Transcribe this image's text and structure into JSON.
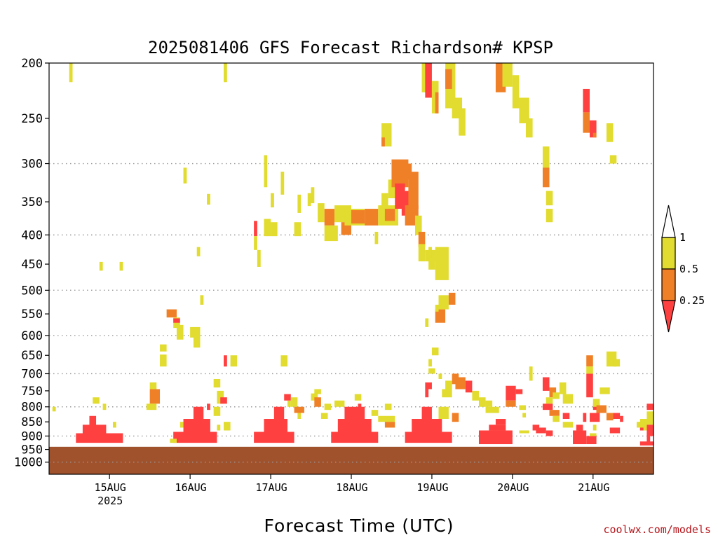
{
  "title": "2025081406 GFS Forecast Richardson# KPSP",
  "credit": "coolwx.com/models",
  "colors": {
    "ri_lt_025": "#ff4040",
    "ri_025_05": "#f08027",
    "ri_05_1": "#e1dc2f",
    "ground": "#a0522d",
    "gridline": "#999999"
  },
  "chart_data": {
    "type": "heatmap",
    "title": "2025081406 GFS Forecast Richardson# KPSP",
    "xlabel": "Forecast Time (UTC)",
    "ylabel": "",
    "x_range_hours_from_init": [
      0,
      180
    ],
    "x_ticks": [
      {
        "label": "15AUG",
        "sub": "2025",
        "hour": 18
      },
      {
        "label": "16AUG",
        "sub": "",
        "hour": 42
      },
      {
        "label": "17AUG",
        "sub": "",
        "hour": 66
      },
      {
        "label": "18AUG",
        "sub": "",
        "hour": 90
      },
      {
        "label": "19AUG",
        "sub": "",
        "hour": 114
      },
      {
        "label": "20AUG",
        "sub": "",
        "hour": 138
      },
      {
        "label": "21AUG",
        "sub": "",
        "hour": 162
      }
    ],
    "y_levels_hpa": [
      "200",
      "250",
      "300",
      "350",
      "400",
      "450",
      "500",
      "550",
      "600",
      "650",
      "700",
      "750",
      "800",
      "850",
      "900",
      "950",
      "1000"
    ],
    "y_range_hpa": [
      1050,
      200
    ],
    "grid_levels_hpa": [
      300,
      400,
      500,
      600,
      700,
      800,
      900,
      1000
    ],
    "ground_top_hpa": 940,
    "colorbar": {
      "labels": [
        "1",
        "0.5",
        "0.25"
      ],
      "bins": [
        {
          "range": "0.5-1",
          "class": 2
        },
        {
          "range": "0.25-0.5",
          "class": 1
        },
        {
          "range": "<0.25",
          "class": 0
        }
      ]
    },
    "class_legend": [
      "<0.25",
      "0.25-0.5",
      "0.5-1"
    ],
    "cells_format": "[hour_start, hour_end, p_top_hPa, p_bottom_hPa, class]",
    "cells": [
      [
        6,
        7,
        200,
        216,
        2
      ],
      [
        52,
        53,
        200,
        216,
        2
      ],
      [
        15,
        16,
        446,
        462,
        2
      ],
      [
        21,
        22,
        446,
        462,
        2
      ],
      [
        40,
        41,
        305,
        325,
        2
      ],
      [
        44,
        45,
        420,
        436,
        2
      ],
      [
        47,
        48,
        339,
        354,
        2
      ],
      [
        35,
        38,
        540,
        558,
        1
      ],
      [
        37,
        39,
        558,
        582,
        2
      ],
      [
        37,
        39,
        560,
        570,
        0
      ],
      [
        38,
        40,
        575,
        610,
        2
      ],
      [
        42,
        45,
        580,
        605,
        2
      ],
      [
        43,
        45,
        595,
        630,
        2
      ],
      [
        45,
        46,
        510,
        530,
        2
      ],
      [
        33,
        35,
        622,
        640,
        2
      ],
      [
        33,
        35,
        648,
        680,
        2
      ],
      [
        30,
        32,
        725,
        745,
        2
      ],
      [
        30,
        33,
        745,
        790,
        1
      ],
      [
        29,
        32,
        790,
        810,
        2
      ],
      [
        13,
        15,
        770,
        790,
        2
      ],
      [
        16,
        17,
        790,
        810,
        2
      ],
      [
        1,
        2,
        800,
        815,
        2
      ],
      [
        12,
        14,
        830,
        880,
        0
      ],
      [
        10,
        17,
        860,
        905,
        0
      ],
      [
        8,
        22,
        890,
        925,
        0
      ],
      [
        19,
        20,
        850,
        870,
        2
      ],
      [
        43,
        46,
        800,
        850,
        0
      ],
      [
        40,
        48,
        840,
        905,
        0
      ],
      [
        37,
        50,
        885,
        925,
        0
      ],
      [
        47,
        48,
        790,
        810,
        0
      ],
      [
        39,
        40,
        850,
        870,
        2
      ],
      [
        36,
        38,
        910,
        925,
        2
      ],
      [
        50,
        51,
        860,
        880,
        2
      ],
      [
        52,
        53,
        650,
        680,
        0
      ],
      [
        54,
        56,
        650,
        680,
        2
      ],
      [
        49,
        51,
        715,
        740,
        2
      ],
      [
        50,
        52,
        750,
        790,
        2
      ],
      [
        49,
        51,
        800,
        830,
        2
      ],
      [
        52,
        54,
        850,
        880,
        2
      ],
      [
        51,
        53,
        770,
        790,
        0
      ],
      [
        64,
        65,
        290,
        330,
        2
      ],
      [
        61,
        62,
        378,
        402,
        0
      ],
      [
        61,
        62,
        402,
        425,
        2
      ],
      [
        62,
        63,
        425,
        455,
        2
      ],
      [
        64,
        66,
        375,
        402,
        2
      ],
      [
        66,
        68,
        380,
        402,
        2
      ],
      [
        66,
        67,
        338,
        358,
        2
      ],
      [
        69,
        70,
        310,
        340,
        2
      ],
      [
        74,
        75,
        340,
        366,
        2
      ],
      [
        77,
        78,
        338,
        356,
        2
      ],
      [
        73,
        75,
        380,
        402,
        2
      ],
      [
        69,
        71,
        650,
        680,
        2
      ],
      [
        67,
        70,
        800,
        850,
        0
      ],
      [
        64,
        71,
        840,
        905,
        0
      ],
      [
        61,
        73,
        885,
        925,
        0
      ],
      [
        71,
        72,
        780,
        800,
        2
      ],
      [
        74,
        75,
        820,
        840,
        2
      ],
      [
        70,
        72,
        760,
        780,
        0
      ],
      [
        72,
        74,
        770,
        800,
        2
      ],
      [
        73,
        76,
        800,
        820,
        1
      ],
      [
        78,
        80,
        758,
        780,
        2
      ],
      [
        79,
        81,
        770,
        800,
        1
      ],
      [
        82,
        84,
        790,
        810,
        2
      ],
      [
        81,
        83,
        820,
        840,
        2
      ],
      [
        86,
        88,
        860,
        880,
        2
      ],
      [
        79,
        81,
        745,
        760,
        2
      ],
      [
        78,
        79,
        330,
        352,
        2
      ],
      [
        80,
        82,
        352,
        380,
        2
      ],
      [
        82,
        85,
        360,
        385,
        1
      ],
      [
        82,
        86,
        385,
        410,
        2
      ],
      [
        85,
        90,
        355,
        380,
        2
      ],
      [
        87,
        90,
        380,
        400,
        1
      ],
      [
        88,
        94,
        360,
        385,
        2
      ],
      [
        90,
        94,
        362,
        382,
        1
      ],
      [
        94,
        98,
        360,
        385,
        1
      ],
      [
        98,
        104,
        355,
        385,
        2
      ],
      [
        100,
        103,
        360,
        378,
        1
      ],
      [
        97,
        98,
        395,
        415,
        2
      ],
      [
        99,
        101,
        338,
        358,
        2
      ],
      [
        101,
        104,
        320,
        345,
        2
      ],
      [
        102,
        107,
        295,
        330,
        1
      ],
      [
        103,
        106,
        325,
        360,
        0
      ],
      [
        105,
        109,
        335,
        370,
        0
      ],
      [
        104,
        108,
        300,
        320,
        1
      ],
      [
        107,
        110,
        310,
        360,
        1
      ],
      [
        106,
        110,
        355,
        385,
        1
      ],
      [
        109,
        111,
        370,
        400,
        2
      ],
      [
        110,
        112,
        395,
        420,
        1
      ],
      [
        110,
        112,
        415,
        445,
        2
      ],
      [
        112,
        116,
        425,
        445,
        2
      ],
      [
        113,
        115,
        435,
        460,
        2
      ],
      [
        115,
        119,
        420,
        480,
        2
      ],
      [
        112,
        113,
        560,
        580,
        2
      ],
      [
        116,
        119,
        510,
        540,
        2
      ],
      [
        119,
        121,
        505,
        530,
        1
      ],
      [
        115,
        118,
        540,
        570,
        1
      ],
      [
        115,
        116,
        530,
        545,
        2
      ],
      [
        113,
        114,
        420,
        440,
        2
      ],
      [
        99,
        102,
        255,
        280,
        2
      ],
      [
        99,
        100,
        270,
        280,
        1
      ],
      [
        111,
        113,
        200,
        225,
        2
      ],
      [
        112,
        114,
        200,
        230,
        0
      ],
      [
        114,
        116,
        215,
        245,
        2
      ],
      [
        115,
        116,
        225,
        245,
        1
      ],
      [
        118,
        121,
        200,
        240,
        2
      ],
      [
        118,
        120,
        205,
        222,
        1
      ],
      [
        120,
        123,
        230,
        250,
        2
      ],
      [
        122,
        124,
        240,
        268,
        2
      ],
      [
        133,
        136,
        200,
        225,
        1
      ],
      [
        135,
        138,
        200,
        220,
        2
      ],
      [
        138,
        140,
        210,
        240,
        2
      ],
      [
        140,
        143,
        230,
        255,
        2
      ],
      [
        142,
        144,
        250,
        270,
        2
      ],
      [
        147,
        149,
        280,
        310,
        2
      ],
      [
        147,
        149,
        305,
        330,
        1
      ],
      [
        148,
        150,
        335,
        355,
        2
      ],
      [
        148,
        150,
        360,
        380,
        2
      ],
      [
        159,
        161,
        222,
        244,
        0
      ],
      [
        159,
        161,
        244,
        265,
        1
      ],
      [
        161,
        163,
        252,
        270,
        0
      ],
      [
        162,
        163,
        265,
        270,
        1
      ],
      [
        166,
        168,
        255,
        275,
        2
      ],
      [
        167,
        169,
        290,
        300,
        2
      ],
      [
        88,
        94,
        800,
        850,
        0
      ],
      [
        86,
        96,
        840,
        905,
        0
      ],
      [
        84,
        98,
        885,
        925,
        0
      ],
      [
        96,
        98,
        810,
        830,
        2
      ],
      [
        98,
        103,
        830,
        850,
        2
      ],
      [
        100,
        103,
        850,
        870,
        1
      ],
      [
        100,
        102,
        790,
        810,
        2
      ],
      [
        91,
        93,
        760,
        780,
        2
      ],
      [
        92,
        93,
        790,
        810,
        0
      ],
      [
        85,
        88,
        780,
        800,
        2
      ],
      [
        111,
        114,
        800,
        860,
        0
      ],
      [
        108,
        117,
        840,
        905,
        0
      ],
      [
        106,
        120,
        885,
        925,
        0
      ],
      [
        112,
        113,
        745,
        770,
        0
      ],
      [
        112,
        114,
        725,
        745,
        0
      ],
      [
        118,
        120,
        720,
        745,
        2
      ],
      [
        120,
        122,
        700,
        730,
        1
      ],
      [
        121,
        124,
        710,
        745,
        1
      ],
      [
        124,
        126,
        720,
        755,
        0
      ],
      [
        126,
        128,
        750,
        780,
        2
      ],
      [
        117,
        120,
        745,
        770,
        2
      ],
      [
        116,
        119,
        800,
        840,
        2
      ],
      [
        120,
        122,
        820,
        850,
        1
      ],
      [
        114,
        116,
        630,
        650,
        2
      ],
      [
        113,
        114,
        660,
        680,
        2
      ],
      [
        113,
        115,
        685,
        700,
        2
      ],
      [
        116,
        117,
        700,
        715,
        2
      ],
      [
        128,
        130,
        770,
        800,
        2
      ],
      [
        130,
        134,
        800,
        820,
        2
      ],
      [
        130,
        132,
        780,
        800,
        2
      ],
      [
        128,
        138,
        880,
        930,
        0
      ],
      [
        131,
        136,
        860,
        880,
        0
      ],
      [
        133,
        136,
        840,
        860,
        0
      ],
      [
        136,
        139,
        735,
        780,
        0
      ],
      [
        136,
        139,
        780,
        800,
        1
      ],
      [
        139,
        141,
        745,
        760,
        0
      ],
      [
        140,
        142,
        795,
        810,
        2
      ],
      [
        141,
        142,
        820,
        835,
        2
      ],
      [
        143,
        144,
        680,
        720,
        2
      ],
      [
        144,
        146,
        860,
        880,
        0
      ],
      [
        140,
        143,
        880,
        890,
        2
      ],
      [
        145,
        148,
        870,
        890,
        0
      ],
      [
        148,
        150,
        880,
        900,
        0
      ],
      [
        147,
        149,
        710,
        750,
        0
      ],
      [
        149,
        151,
        740,
        770,
        1
      ],
      [
        150,
        152,
        755,
        775,
        2
      ],
      [
        148,
        150,
        770,
        790,
        2
      ],
      [
        147,
        150,
        790,
        810,
        0
      ],
      [
        149,
        152,
        810,
        830,
        1
      ],
      [
        150,
        152,
        830,
        850,
        2
      ],
      [
        152,
        154,
        725,
        760,
        2
      ],
      [
        153,
        156,
        760,
        790,
        2
      ],
      [
        153,
        155,
        820,
        840,
        0
      ],
      [
        153,
        156,
        850,
        870,
        2
      ],
      [
        156,
        160,
        880,
        930,
        0
      ],
      [
        160,
        163,
        900,
        930,
        0
      ],
      [
        157,
        159,
        860,
        880,
        0
      ],
      [
        159,
        160,
        820,
        850,
        0
      ],
      [
        161,
        164,
        820,
        850,
        0
      ],
      [
        162,
        164,
        790,
        810,
        0
      ],
      [
        163,
        165,
        800,
        820,
        0
      ],
      [
        160,
        162,
        650,
        680,
        1
      ],
      [
        160,
        162,
        700,
        770,
        0
      ],
      [
        160,
        162,
        680,
        700,
        2
      ],
      [
        162,
        164,
        775,
        800,
        2
      ],
      [
        163,
        166,
        795,
        820,
        1
      ],
      [
        162,
        163,
        860,
        880,
        2
      ],
      [
        161,
        163,
        890,
        900,
        2
      ],
      [
        164,
        167,
        740,
        760,
        2
      ],
      [
        166,
        169,
        640,
        680,
        2
      ],
      [
        168,
        170,
        660,
        680,
        2
      ],
      [
        168,
        170,
        820,
        840,
        0
      ],
      [
        166,
        168,
        820,
        845,
        1
      ],
      [
        167,
        170,
        870,
        890,
        0
      ],
      [
        170,
        171,
        830,
        850,
        0
      ],
      [
        176,
        178,
        840,
        880,
        2
      ],
      [
        176,
        177,
        860,
        880,
        0
      ],
      [
        178,
        180,
        790,
        810,
        0
      ],
      [
        178,
        180,
        815,
        860,
        2
      ],
      [
        178,
        180,
        860,
        900,
        0
      ],
      [
        178,
        179,
        900,
        930,
        0
      ],
      [
        176,
        180,
        920,
        935,
        0
      ],
      [
        175,
        178,
        850,
        870,
        2
      ]
    ]
  }
}
